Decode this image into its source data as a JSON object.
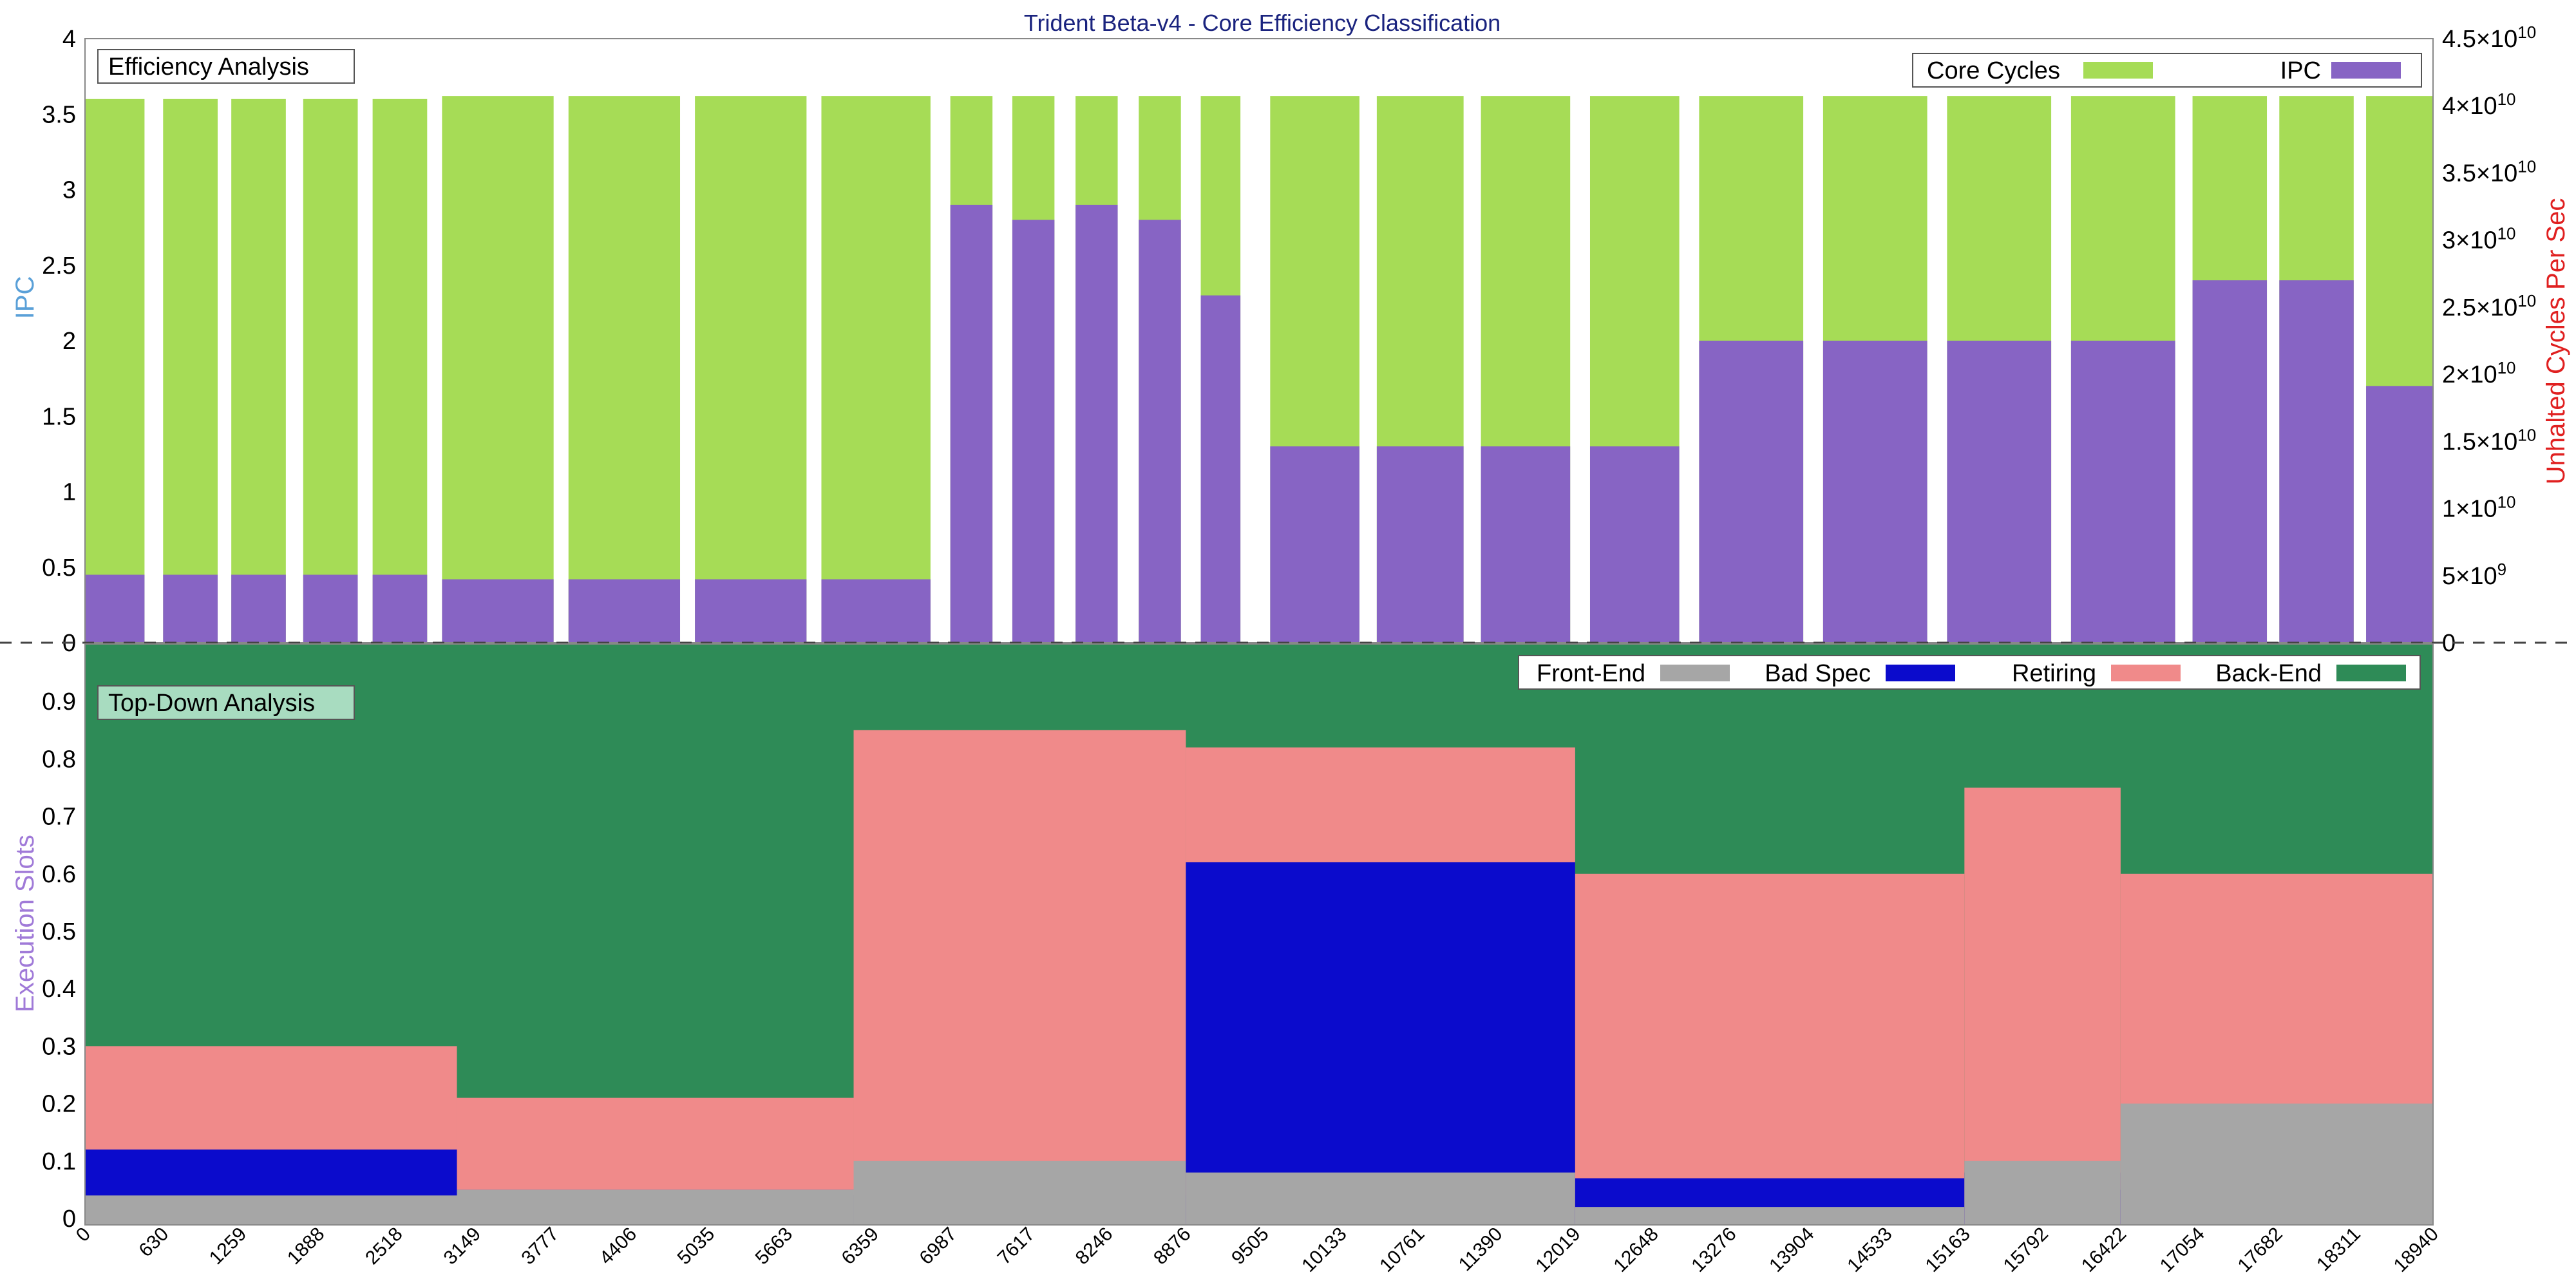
{
  "chart_title": "Trident Beta-v4 - Core Efficiency Classification",
  "colors": {
    "core_cycles": "#a6dc56",
    "ipc": "#8764c4",
    "front_end": "#a6a6a6",
    "bad_spec": "#0b0bcc",
    "retiring": "#f08a8a",
    "back_end": "#2e8b57",
    "title": "#1a237e",
    "ipc_axis_label": "#5aa0d8",
    "slots_axis_label": "#a07ad8",
    "cycles_axis_label": "#e02020"
  },
  "chart_data": [
    {
      "type": "area",
      "box_label": "Efficiency Analysis",
      "ylabel": "IPC",
      "y2label": "Unhalted Cycles Per Sec",
      "ylim": [
        0,
        4
      ],
      "y2lim": [
        0,
        45000000000
      ],
      "y_ticks": [
        "0",
        "0.5",
        "1",
        "1.5",
        "2",
        "2.5",
        "3",
        "3.5",
        "4"
      ],
      "y2_ticks": [
        {
          "mant": "0",
          "exp": ""
        },
        {
          "mant": "5×10",
          "exp": "9"
        },
        {
          "mant": "1×10",
          "exp": "10"
        },
        {
          "mant": "1.5×10",
          "exp": "10"
        },
        {
          "mant": "2×10",
          "exp": "10"
        },
        {
          "mant": "2.5×10",
          "exp": "10"
        },
        {
          "mant": "3×10",
          "exp": "10"
        },
        {
          "mant": "3.5×10",
          "exp": "10"
        },
        {
          "mant": "4×10",
          "exp": "10"
        },
        {
          "mant": "4.5×10",
          "exp": "10"
        }
      ],
      "legend": [
        "Core Cycles",
        "IPC"
      ],
      "legend_placement": "top-right",
      "xlim": [
        0,
        18940
      ],
      "segments": [
        {
          "x": [
            0,
            480
          ],
          "cycles_ipc": 3.6,
          "ipc": 0.45
        },
        {
          "x": [
            630,
            1070
          ],
          "cycles_ipc": 3.6,
          "ipc": 0.45
        },
        {
          "x": [
            1180,
            1620
          ],
          "cycles_ipc": 3.6,
          "ipc": 0.45
        },
        {
          "x": [
            1760,
            2200
          ],
          "cycles_ipc": 3.6,
          "ipc": 0.45
        },
        {
          "x": [
            2320,
            2760
          ],
          "cycles_ipc": 3.6,
          "ipc": 0.45
        },
        {
          "x": [
            2880,
            3780
          ],
          "cycles_ipc": 3.62,
          "ipc": 0.42
        },
        {
          "x": [
            3900,
            4800
          ],
          "cycles_ipc": 3.62,
          "ipc": 0.42
        },
        {
          "x": [
            4920,
            5820
          ],
          "cycles_ipc": 3.62,
          "ipc": 0.42
        },
        {
          "x": [
            5940,
            6820
          ],
          "cycles_ipc": 3.62,
          "ipc": 0.42
        },
        {
          "x": [
            6980,
            7320
          ],
          "cycles_ipc": 3.62,
          "ipc": 2.9
        },
        {
          "x": [
            7480,
            7820
          ],
          "cycles_ipc": 3.62,
          "ipc": 2.8
        },
        {
          "x": [
            7990,
            8330
          ],
          "cycles_ipc": 3.62,
          "ipc": 2.9
        },
        {
          "x": [
            8500,
            8840
          ],
          "cycles_ipc": 3.62,
          "ipc": 2.8
        },
        {
          "x": [
            9000,
            9320
          ],
          "cycles_ipc": 3.62,
          "ipc": 2.3
        },
        {
          "x": [
            9560,
            10280
          ],
          "cycles_ipc": 3.62,
          "ipc": 1.3
        },
        {
          "x": [
            10420,
            11120
          ],
          "cycles_ipc": 3.62,
          "ipc": 1.3
        },
        {
          "x": [
            11260,
            11980
          ],
          "cycles_ipc": 3.62,
          "ipc": 1.3
        },
        {
          "x": [
            12140,
            12860
          ],
          "cycles_ipc": 3.62,
          "ipc": 1.3
        },
        {
          "x": [
            13020,
            13860
          ],
          "cycles_ipc": 3.62,
          "ipc": 2.0
        },
        {
          "x": [
            14020,
            14860
          ],
          "cycles_ipc": 3.62,
          "ipc": 2.0
        },
        {
          "x": [
            15020,
            15860
          ],
          "cycles_ipc": 3.62,
          "ipc": 2.0
        },
        {
          "x": [
            16020,
            16860
          ],
          "cycles_ipc": 3.62,
          "ipc": 2.0
        },
        {
          "x": [
            17000,
            17600
          ],
          "cycles_ipc": 3.62,
          "ipc": 2.4
        },
        {
          "x": [
            17700,
            18300
          ],
          "cycles_ipc": 3.62,
          "ipc": 2.4
        },
        {
          "x": [
            18400,
            18940
          ],
          "cycles_ipc": 3.62,
          "ipc": 1.7
        }
      ]
    },
    {
      "type": "area",
      "box_label": "Top-Down Analysis",
      "ylabel": "Execution Slots",
      "ylim": [
        0,
        1
      ],
      "y_ticks": [
        "0",
        "0.1",
        "0.2",
        "0.3",
        "0.4",
        "0.5",
        "0.6",
        "0.7",
        "0.8",
        "0.9"
      ],
      "legend": [
        "Front-End",
        "Bad Spec",
        "Retiring",
        "Back-End"
      ],
      "legend_placement": "top-right",
      "x_ticks": [
        "0",
        "630",
        "1259",
        "1888",
        "2518",
        "3149",
        "3777",
        "4406",
        "5035",
        "5663",
        "6359",
        "6987",
        "7617",
        "8246",
        "8876",
        "9505",
        "10133",
        "10761",
        "11390",
        "12019",
        "12648",
        "13276",
        "13904",
        "14533",
        "15163",
        "15792",
        "16422",
        "17054",
        "17682",
        "18311",
        "18940"
      ],
      "xlim": [
        0,
        18940
      ],
      "segments": [
        {
          "x": [
            0,
            3000
          ],
          "front_end": 0.04,
          "bad_spec": 0.12,
          "retiring": 0.3
        },
        {
          "x": [
            3000,
            6200
          ],
          "front_end": 0.05,
          "bad_spec": 0.05,
          "retiring": 0.21
        },
        {
          "x": [
            6200,
            8880
          ],
          "front_end": 0.1,
          "bad_spec": 0.04,
          "retiring": 0.85
        },
        {
          "x": [
            8880,
            12020
          ],
          "front_end": 0.08,
          "bad_spec": 0.62,
          "retiring": 0.82
        },
        {
          "x": [
            12020,
            15160
          ],
          "front_end": 0.02,
          "bad_spec": 0.07,
          "retiring": 0.6
        },
        {
          "x": [
            15160,
            16420
          ],
          "front_end": 0.1,
          "bad_spec": 0.08,
          "retiring": 0.75
        },
        {
          "x": [
            16420,
            18940
          ],
          "front_end": 0.2,
          "bad_spec": 0.05,
          "retiring": 0.6
        }
      ]
    }
  ]
}
